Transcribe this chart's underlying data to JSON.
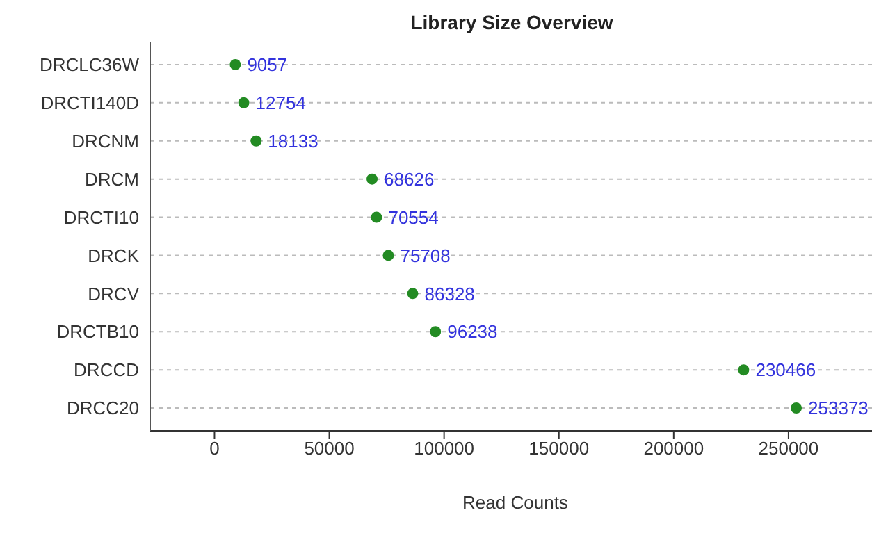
{
  "chart_data": {
    "type": "scatter",
    "title": "Library Size Overview",
    "xlabel": "Read Counts",
    "categories": [
      "DRCLC36W",
      "DRCTI140D",
      "DRCNM",
      "DRCM",
      "DRCTI10",
      "DRCK",
      "DRCV",
      "DRCTB10",
      "DRCCD",
      "DRCC20"
    ],
    "orientation": "horizontal",
    "series": [
      {
        "color": "#238b23",
        "values": [
          9057,
          12754,
          18133,
          68626,
          70554,
          75708,
          86328,
          96238,
          230466,
          253373
        ]
      }
    ],
    "xlim": [
      -28000,
      290000
    ],
    "xticks": [
      0,
      50000,
      100000,
      150000,
      200000,
      250000
    ],
    "grid": "y",
    "marker": "circle",
    "data_labels": true
  }
}
